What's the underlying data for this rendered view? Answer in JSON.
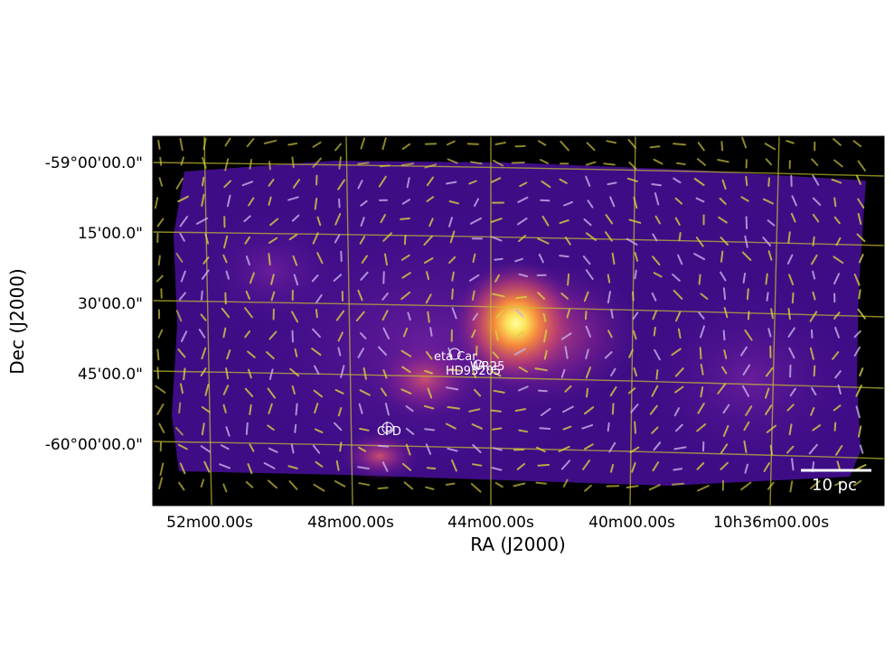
{
  "figure": {
    "x_label": "RA (J2000)",
    "y_label": "Dec (J2000)",
    "x_ticks": [
      "52m00.00s",
      "48m00.00s",
      "44m00.00s",
      "40m00.00s",
      "10h36m00.00s"
    ],
    "y_ticks": [
      "-59°00'00.0\"",
      "15'00.0\"",
      "30'00.0\"",
      "45'00.0\"",
      "-60°00'00.0\""
    ],
    "annotations": [
      "eta Car",
      "WR25",
      "HD93205",
      "CPD"
    ],
    "scale_bar_label": "10 pc",
    "colormap": [
      "#0d0887",
      "#3a0a9a",
      "#7a1fa2",
      "#cc4778",
      "#f89540",
      "#fdf29a"
    ],
    "grid_color": "#c8c030",
    "vector_colors": [
      "#d8d040",
      "#c9b0e8"
    ]
  }
}
